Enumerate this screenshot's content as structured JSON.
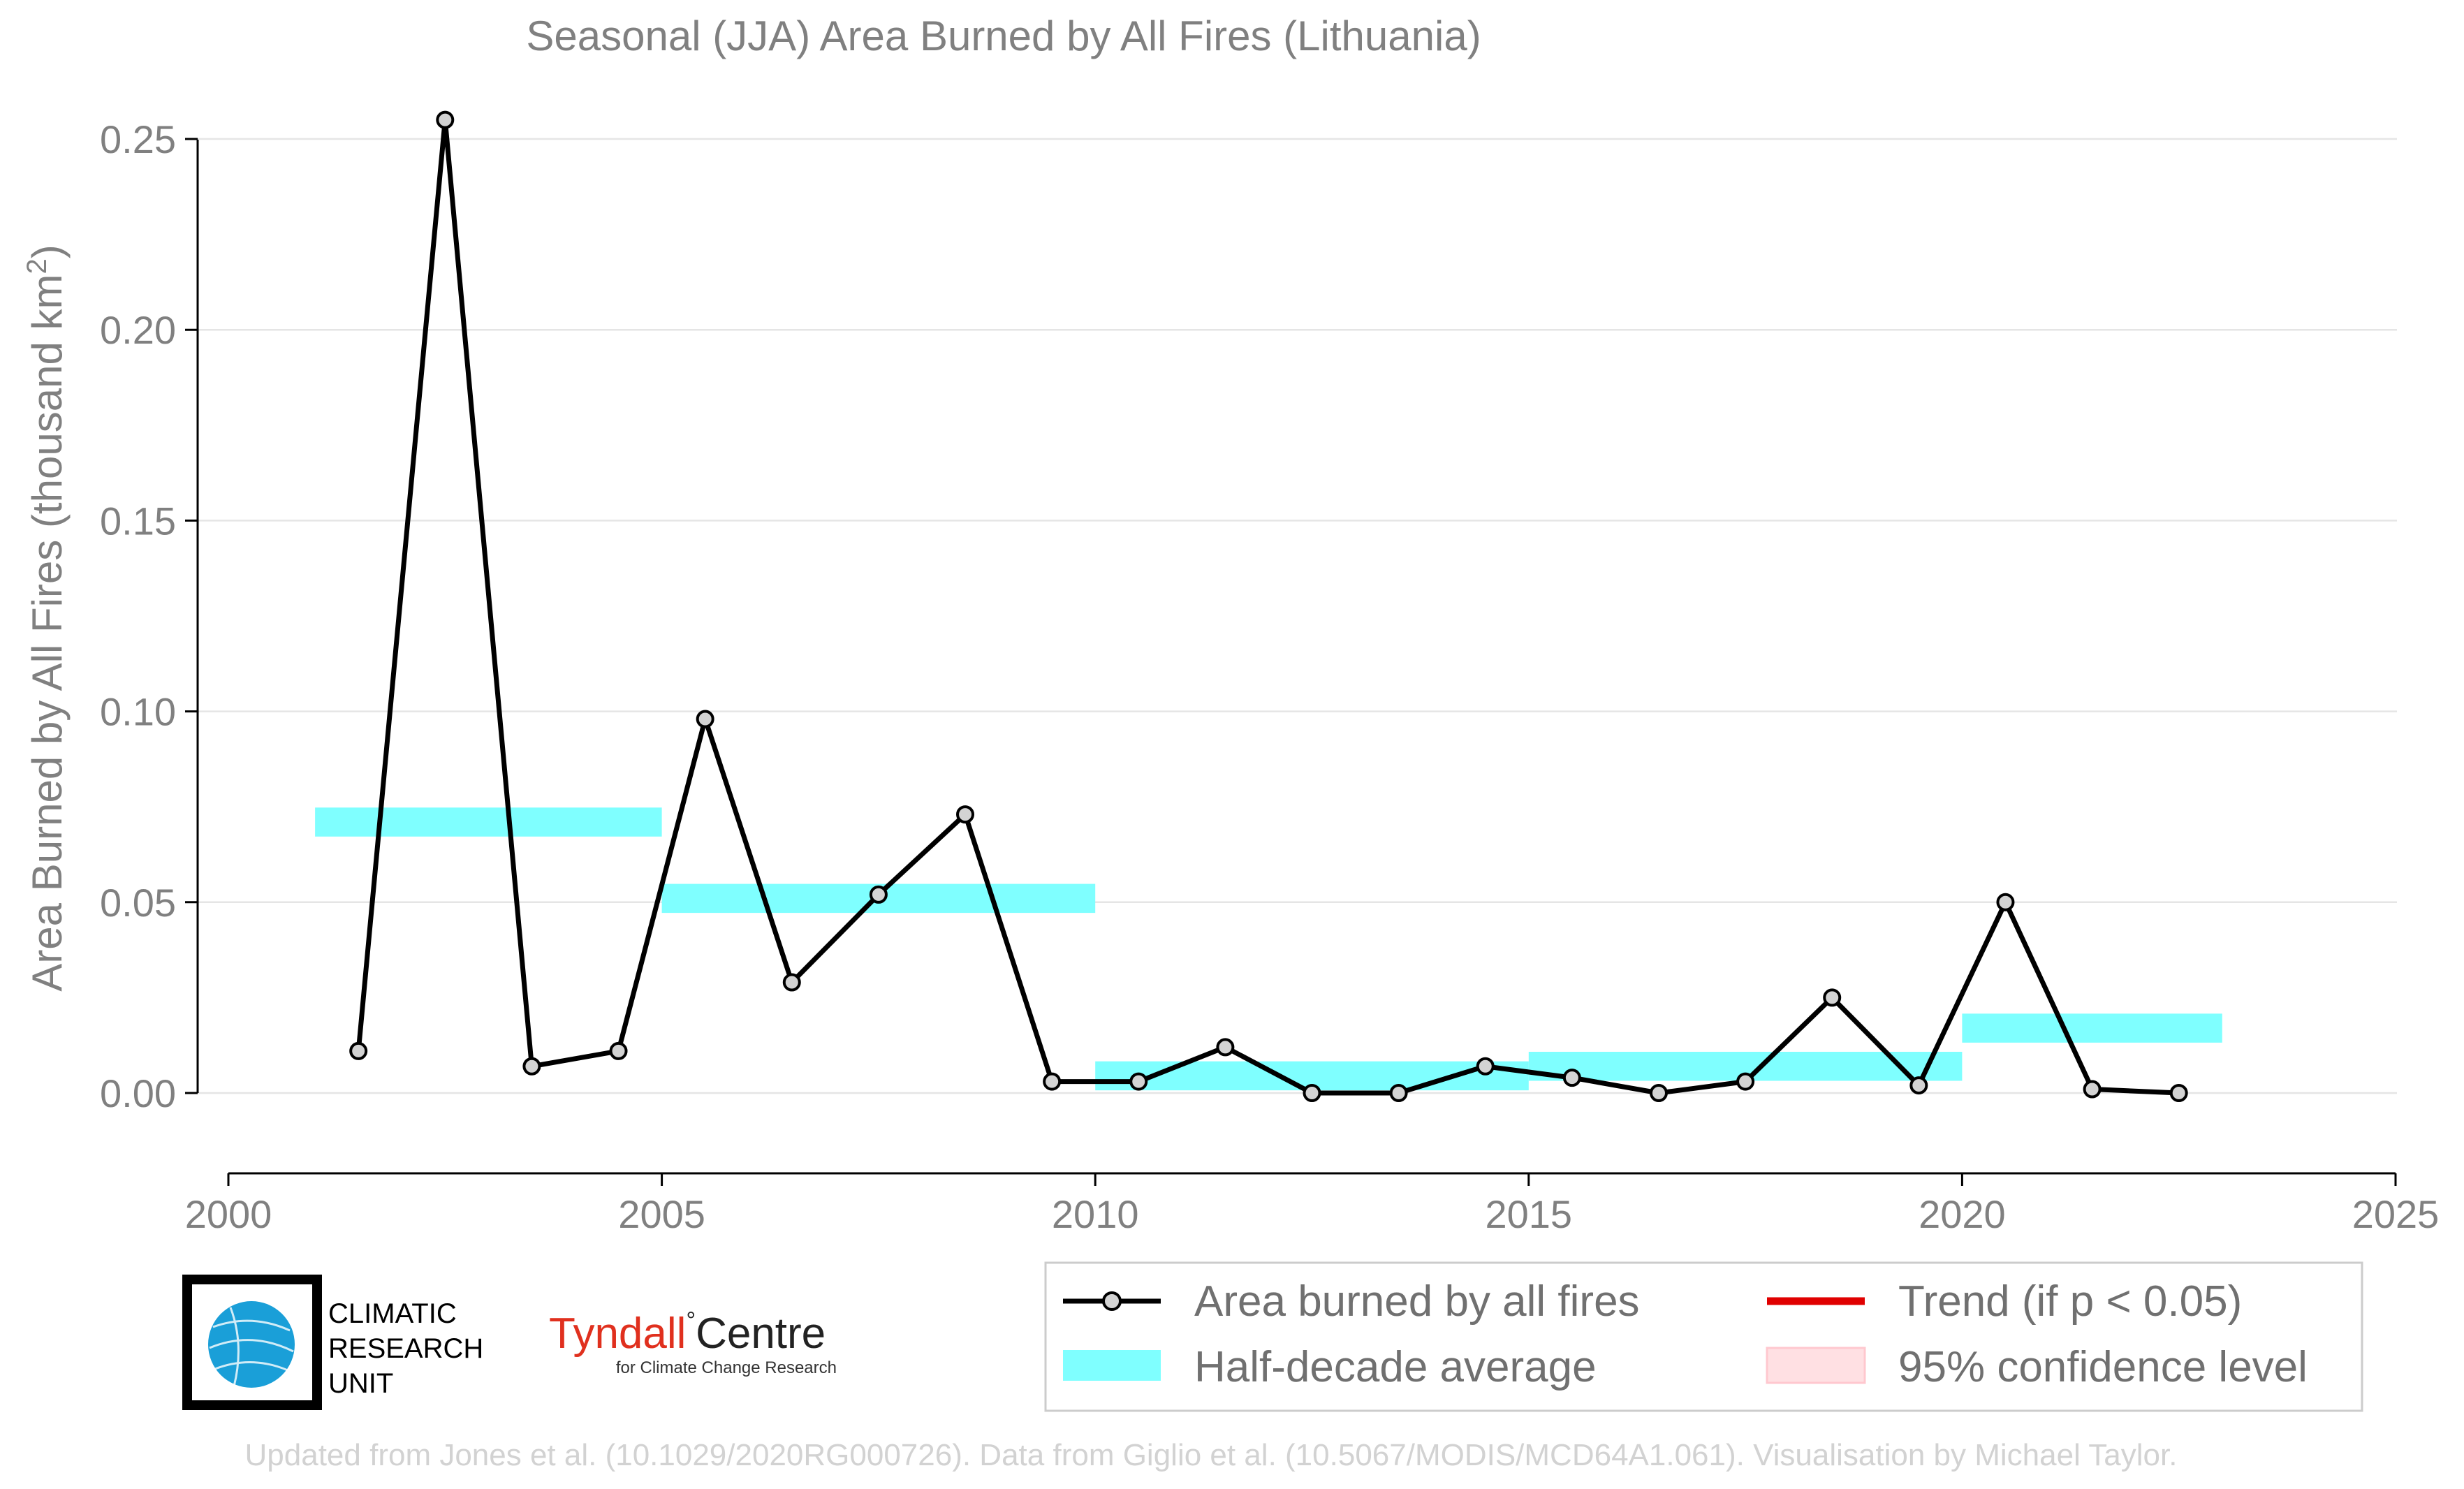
{
  "chart_data": {
    "type": "line",
    "title": "Seasonal (JJA) Area Burned by All Fires (Lithuania)",
    "xlabel": "",
    "ylabel": "Area Burned by All Fires (thousand km",
    "ylabel_sup": "2",
    "ylabel_end": ")",
    "xlim": [
      2000,
      2025
    ],
    "ylim": [
      -0.015,
      0.25
    ],
    "x_ticks": [
      2000,
      2005,
      2010,
      2015,
      2020,
      2025
    ],
    "x_tick_labels": [
      "2000",
      "2005",
      "2010",
      "2015",
      "2020",
      "2025"
    ],
    "y_ticks": [
      0.0,
      0.05,
      0.1,
      0.15,
      0.2,
      0.25
    ],
    "y_tick_labels": [
      "0.00",
      "0.05",
      "0.10",
      "0.15",
      "0.20",
      "0.25"
    ],
    "grid": "horizontal",
    "series": [
      {
        "name": "Area burned by all fires",
        "x": [
          2001.5,
          2002.5,
          2003.5,
          2004.5,
          2005.5,
          2006.5,
          2007.5,
          2008.5,
          2009.5,
          2010.5,
          2011.5,
          2012.5,
          2013.5,
          2014.5,
          2015.5,
          2016.5,
          2017.5,
          2018.5,
          2019.5,
          2020.5,
          2021.5,
          2022.5
        ],
        "values": [
          0.011,
          0.255,
          0.007,
          0.011,
          0.098,
          0.029,
          0.052,
          0.073,
          0.003,
          0.003,
          0.012,
          0.0,
          0.0,
          0.007,
          0.004,
          0.0,
          0.003,
          0.025,
          0.002,
          0.05,
          0.001,
          0.0
        ]
      }
    ],
    "half_decade_average": {
      "name": "Half-decade average",
      "segments": [
        {
          "x0": 2001,
          "x1": 2005,
          "value": 0.071
        },
        {
          "x0": 2005,
          "x1": 2010,
          "value": 0.051
        },
        {
          "x0": 2010,
          "x1": 2015,
          "value": 0.0045
        },
        {
          "x0": 2015,
          "x1": 2020,
          "value": 0.007
        },
        {
          "x0": 2020,
          "x1": 2023,
          "value": 0.017
        }
      ]
    },
    "legend": {
      "placement": "bottom-right",
      "entries": [
        {
          "label": "Area burned by all fires",
          "style": "line-marker"
        },
        {
          "label": "Trend (if p < 0.05)",
          "style": "red-line"
        },
        {
          "label": "Half-decade average",
          "style": "cyan-bar"
        },
        {
          "label": "95% confidence level",
          "style": "pink-box"
        }
      ]
    },
    "colors": {
      "line": "#000000",
      "marker_fill": "#d3d3d3",
      "half_decade": "#7fffff",
      "trend": "#e00000",
      "confidence": "#ffe0e3",
      "grid": "#e5e5e5",
      "text": "#808080"
    }
  },
  "logos": {
    "cru": {
      "line1": "CLIMATIC",
      "line2": "RESEARCH",
      "line3": "UNIT"
    },
    "tyndall": {
      "main": "Tyndall",
      "degree": "°",
      "main2": "Centre",
      "sub": "for Climate Change Research"
    }
  },
  "footer": "Updated from Jones et al. (10.1029/2020RG000726). Data from Giglio et al. (10.5067/MODIS/MCD64A1.061). Visualisation by Michael Taylor."
}
